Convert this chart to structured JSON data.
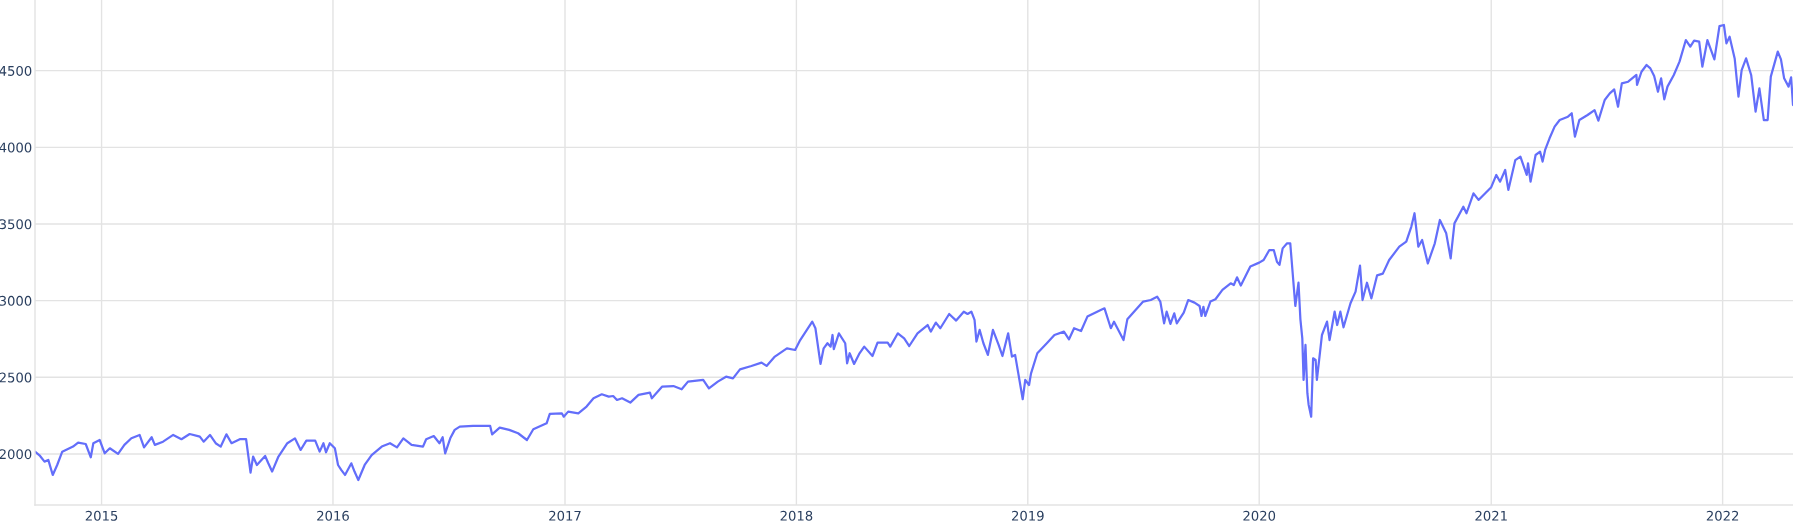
{
  "chart_data": {
    "type": "line",
    "x": [
      "2014-09-18",
      "2014-09-26",
      "2014-10-03",
      "2014-10-09",
      "2014-10-16",
      "2014-10-23",
      "2014-10-31",
      "2014-11-17",
      "2014-11-25",
      "2014-12-07",
      "2014-12-15",
      "2014-12-19",
      "2014-12-29",
      "2015-01-06",
      "2015-01-14",
      "2015-01-27",
      "2015-02-06",
      "2015-02-17",
      "2015-03-02",
      "2015-03-09",
      "2015-03-21",
      "2015-03-26",
      "2015-04-08",
      "2015-04-24",
      "2015-05-07",
      "2015-05-20",
      "2015-06-05",
      "2015-06-11",
      "2015-06-21",
      "2015-06-30",
      "2015-07-08",
      "2015-07-17",
      "2015-07-25",
      "2015-08-07",
      "2015-08-17",
      "2015-08-24",
      "2015-08-28",
      "2015-09-03",
      "2015-09-16",
      "2015-09-21",
      "2015-09-27",
      "2015-10-07",
      "2015-10-21",
      "2015-11-02",
      "2015-11-11",
      "2015-11-20",
      "2015-12-04",
      "2015-12-11",
      "2015-12-17",
      "2015-12-21",
      "2015-12-27",
      "2016-01-04",
      "2016-01-09",
      "2016-01-14",
      "2016-01-20",
      "2016-01-30",
      "2016-02-04",
      "2016-02-10",
      "2016-02-20",
      "2016-03-02",
      "2016-03-18",
      "2016-03-31",
      "2016-04-11",
      "2016-04-21",
      "2016-05-04",
      "2016-05-22",
      "2016-05-27",
      "2016-06-08",
      "2016-06-17",
      "2016-06-22",
      "2016-06-26",
      "2016-07-04",
      "2016-07-11",
      "2016-07-19",
      "2016-08-09",
      "2016-09-05",
      "2016-09-08",
      "2016-09-20",
      "2016-10-05",
      "2016-10-19",
      "2016-11-02",
      "2016-11-12",
      "2016-12-03",
      "2016-12-08",
      "2016-12-27",
      "2016-12-30",
      "2017-01-06",
      "2017-01-22",
      "2017-02-04",
      "2017-02-15",
      "2017-02-28",
      "2017-03-11",
      "2017-03-18",
      "2017-03-24",
      "2017-04-01",
      "2017-04-14",
      "2017-04-27",
      "2017-05-15",
      "2017-05-18",
      "2017-06-03",
      "2017-06-21",
      "2017-07-04",
      "2017-07-14",
      "2017-08-07",
      "2017-08-16",
      "2017-08-30",
      "2017-09-12",
      "2017-09-23",
      "2017-10-04",
      "2017-10-22",
      "2017-11-07",
      "2017-11-15",
      "2017-11-28",
      "2017-12-17",
      "2017-12-30",
      "2018-01-07",
      "2018-01-26",
      "2018-01-31",
      "2018-02-08",
      "2018-02-13",
      "2018-02-19",
      "2018-02-24",
      "2018-02-27",
      "2018-03-01",
      "2018-03-09",
      "2018-03-19",
      "2018-03-22",
      "2018-03-26",
      "2018-04-02",
      "2018-04-10",
      "2018-04-18",
      "2018-05-01",
      "2018-05-09",
      "2018-05-25",
      "2018-05-29",
      "2018-06-10",
      "2018-06-20",
      "2018-06-28",
      "2018-07-11",
      "2018-07-27",
      "2018-08-01",
      "2018-08-09",
      "2018-08-16",
      "2018-08-30",
      "2018-09-10",
      "2018-09-22",
      "2018-09-28",
      "2018-10-04",
      "2018-10-09",
      "2018-10-12",
      "2018-10-17",
      "2018-10-23",
      "2018-10-30",
      "2018-11-07",
      "2018-11-16",
      "2018-11-22",
      "2018-12-01",
      "2018-12-07",
      "2018-12-12",
      "2018-12-24",
      "2018-12-28",
      "2019-01-03",
      "2019-01-06",
      "2019-01-16",
      "2019-01-31",
      "2019-02-12",
      "2019-02-27",
      "2019-03-07",
      "2019-03-15",
      "2019-03-26",
      "2019-04-05",
      "2019-04-26",
      "2019-05-02",
      "2019-05-12",
      "2019-05-17",
      "2019-06-01",
      "2019-06-07",
      "2019-06-20",
      "2019-07-02",
      "2019-07-14",
      "2019-07-24",
      "2019-07-29",
      "2019-08-04",
      "2019-08-08",
      "2019-08-14",
      "2019-08-20",
      "2019-08-24",
      "2019-09-04",
      "2019-09-11",
      "2019-09-21",
      "2019-09-29",
      "2019-10-02",
      "2019-10-05",
      "2019-10-08",
      "2019-10-16",
      "2019-10-24",
      "2019-11-04",
      "2019-11-17",
      "2019-11-22",
      "2019-11-27",
      "2019-12-03",
      "2019-12-18",
      "2020-01-01",
      "2020-01-08",
      "2020-01-17",
      "2020-01-24",
      "2020-01-29",
      "2020-02-02",
      "2020-02-07",
      "2020-02-14",
      "2020-02-19",
      "2020-02-27",
      "2020-03-03",
      "2020-03-06",
      "2020-03-09",
      "2020-03-11",
      "2020-03-14",
      "2020-03-17",
      "2020-03-19",
      "2020-03-23",
      "2020-03-26",
      "2020-03-30",
      "2020-04-01",
      "2020-04-09",
      "2020-04-17",
      "2020-04-21",
      "2020-04-29",
      "2020-05-03",
      "2020-05-08",
      "2020-05-13",
      "2020-05-24",
      "2020-06-01",
      "2020-06-08",
      "2020-06-12",
      "2020-06-19",
      "2020-06-26",
      "2020-07-05",
      "2020-07-14",
      "2020-07-24",
      "2020-08-09",
      "2020-08-20",
      "2020-08-28",
      "2020-09-02",
      "2020-09-08",
      "2020-09-14",
      "2020-09-23",
      "2020-10-04",
      "2020-10-12",
      "2020-10-22",
      "2020-10-29",
      "2020-11-04",
      "2020-11-18",
      "2020-11-23",
      "2020-12-04",
      "2020-12-12",
      "2021-01-01",
      "2021-01-09",
      "2021-01-15",
      "2021-01-23",
      "2021-01-28",
      "2021-02-08",
      "2021-02-16",
      "2021-02-26",
      "2021-02-28",
      "2021-03-04",
      "2021-03-12",
      "2021-03-19",
      "2021-03-23",
      "2021-03-27",
      "2021-04-03",
      "2021-04-11",
      "2021-04-19",
      "2021-05-02",
      "2021-05-08",
      "2021-05-13",
      "2021-05-20",
      "2021-06-02",
      "2021-06-13",
      "2021-06-19",
      "2021-06-29",
      "2021-07-07",
      "2021-07-14",
      "2021-07-20",
      "2021-07-26",
      "2021-08-05",
      "2021-08-18",
      "2021-08-19",
      "2021-08-26",
      "2021-09-03",
      "2021-09-09",
      "2021-09-15",
      "2021-09-21",
      "2021-09-26",
      "2021-10-01",
      "2021-10-06",
      "2021-10-16",
      "2021-10-25",
      "2021-11-04",
      "2021-11-11",
      "2021-11-17",
      "2021-11-25",
      "2021-11-30",
      "2021-12-08",
      "2021-12-19",
      "2021-12-27",
      "2022-01-03",
      "2022-01-07",
      "2022-01-12",
      "2022-01-20",
      "2022-01-26",
      "2022-01-31",
      "2022-02-07",
      "2022-02-15",
      "2022-02-22",
      "2022-02-28",
      "2022-03-07",
      "2022-03-13",
      "2022-03-18",
      "2022-03-29",
      "2022-04-03",
      "2022-04-08",
      "2022-04-15",
      "2022-04-19",
      "2022-04-22"
    ],
    "series": [
      {
        "color": "#636efa",
        "values": [
          2015,
          1987,
          1950,
          1961,
          1863,
          1928,
          2015,
          2048,
          2074,
          2065,
          1978,
          2070,
          2091,
          2004,
          2037,
          2000,
          2059,
          2102,
          2124,
          2043,
          2109,
          2059,
          2080,
          2124,
          2096,
          2130,
          2113,
          2080,
          2124,
          2070,
          2048,
          2128,
          2070,
          2096,
          2096,
          1878,
          1983,
          1928,
          1987,
          1939,
          1885,
          1983,
          2070,
          2102,
          2026,
          2087,
          2087,
          2015,
          2070,
          2011,
          2070,
          2037,
          1928,
          1896,
          1863,
          1939,
          1885,
          1830,
          1928,
          1993,
          2048,
          2070,
          2043,
          2102,
          2059,
          2048,
          2096,
          2117,
          2070,
          2109,
          2004,
          2102,
          2157,
          2178,
          2183,
          2183,
          2128,
          2172,
          2157,
          2135,
          2091,
          2161,
          2200,
          2261,
          2265,
          2243,
          2276,
          2265,
          2309,
          2363,
          2389,
          2374,
          2378,
          2352,
          2363,
          2335,
          2385,
          2400,
          2363,
          2439,
          2443,
          2422,
          2472,
          2483,
          2428,
          2472,
          2504,
          2493,
          2552,
          2574,
          2596,
          2574,
          2635,
          2689,
          2678,
          2743,
          2863,
          2820,
          2587,
          2689,
          2722,
          2700,
          2776,
          2683,
          2787,
          2722,
          2591,
          2657,
          2587,
          2652,
          2700,
          2639,
          2726,
          2726,
          2700,
          2787,
          2754,
          2704,
          2787,
          2841,
          2798,
          2857,
          2820,
          2913,
          2870,
          2928,
          2913,
          2928,
          2874,
          2733,
          2809,
          2722,
          2646,
          2809,
          2711,
          2639,
          2787,
          2635,
          2646,
          2357,
          2483,
          2450,
          2524,
          2657,
          2722,
          2776,
          2798,
          2748,
          2820,
          2802,
          2896,
          2939,
          2950,
          2820,
          2863,
          2743,
          2878,
          2939,
          2994,
          3004,
          3026,
          2994,
          2852,
          2928,
          2848,
          2917,
          2852,
          2922,
          3004,
          2987,
          2965,
          2900,
          2960,
          2900,
          2994,
          3009,
          3070,
          3113,
          3102,
          3152,
          3098,
          3222,
          3248,
          3265,
          3330,
          3330,
          3254,
          3233,
          3341,
          3374,
          3374,
          2965,
          3117,
          2878,
          2754,
          2483,
          2711,
          2396,
          2320,
          2243,
          2624,
          2613,
          2483,
          2776,
          2863,
          2743,
          2928,
          2841,
          2928,
          2826,
          2983,
          3059,
          3228,
          3004,
          3117,
          3015,
          3165,
          3176,
          3265,
          3352,
          3385,
          3483,
          3570,
          3352,
          3396,
          3243,
          3374,
          3526,
          3439,
          3276,
          3504,
          3613,
          3570,
          3700,
          3657,
          3740,
          3820,
          3776,
          3852,
          3722,
          3917,
          3939,
          3820,
          3896,
          3776,
          3950,
          3972,
          3907,
          3983,
          4059,
          4135,
          4178,
          4200,
          4222,
          4070,
          4178,
          4211,
          4243,
          4174,
          4309,
          4352,
          4378,
          4265,
          4417,
          4428,
          4472,
          4407,
          4493,
          4537,
          4515,
          4465,
          4363,
          4450,
          4313,
          4396,
          4472,
          4559,
          4700,
          4657,
          4696,
          4689,
          4526,
          4700,
          4574,
          4791,
          4798,
          4678,
          4722,
          4580,
          4330,
          4504,
          4580,
          4472,
          4233,
          4385,
          4178,
          4178,
          4461,
          4624,
          4574,
          4450,
          4396,
          4457,
          4276
        ]
      }
    ],
    "xlim": [
      "2014-09-18",
      "2022-04-22"
    ],
    "ylim": [
      1667,
      4961
    ],
    "xticks": [
      "2015",
      "2016",
      "2017",
      "2018",
      "2019",
      "2020",
      "2021",
      "2022"
    ],
    "yticks": [
      2000,
      2500,
      3000,
      3500,
      4000,
      4500
    ],
    "grid": true
  }
}
